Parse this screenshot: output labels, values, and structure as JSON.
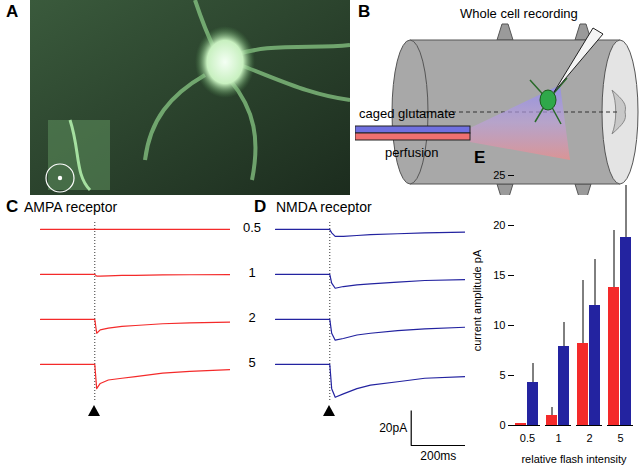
{
  "panel_labels": [
    "A",
    "B",
    "C",
    "D",
    "E"
  ],
  "diagram": {
    "recording_label": "Whole cell recording",
    "perfusion_label": [
      "caged glutamate",
      "perfusion"
    ]
  },
  "chart_data": [
    {
      "type": "line",
      "title": "AMPA receptor",
      "color": "#f42a2a",
      "x": [
        0,
        190,
        200,
        207,
        220,
        250,
        300,
        350,
        450,
        550,
        700
      ],
      "xlim": [
        0,
        700
      ],
      "ylim": [
        -22,
        4
      ],
      "tick_labels": false,
      "stimulus": 200,
      "series": [
        {
          "name": "0.5",
          "values": [
            0,
            0,
            0,
            0,
            0,
            0,
            0,
            0,
            0,
            0,
            0
          ]
        },
        {
          "name": "1",
          "values": [
            0,
            0,
            0,
            -1,
            -1,
            -0.8,
            -0.6,
            -0.5,
            -0.3,
            -0.2,
            -0.1
          ]
        },
        {
          "name": "2",
          "values": [
            0,
            0,
            0,
            -8,
            -6,
            -5,
            -4,
            -3.5,
            -2.5,
            -2,
            -1.5
          ]
        },
        {
          "name": "5",
          "values": [
            0,
            0,
            0,
            -14,
            -11,
            -9,
            -8,
            -7,
            -5,
            -4,
            -3
          ]
        }
      ]
    },
    {
      "type": "line",
      "title": "NMDA receptor",
      "color": "#2323a0",
      "x": [
        0,
        190,
        200,
        207,
        220,
        250,
        300,
        350,
        450,
        550,
        700
      ],
      "xlim": [
        0,
        700
      ],
      "ylim": [
        -22,
        4
      ],
      "tick_labels": false,
      "stimulus": 200,
      "series": [
        {
          "values": [
            0,
            0,
            0,
            -2,
            -4,
            -4,
            -3.5,
            -3,
            -2.5,
            -2,
            -1.5
          ]
        },
        {
          "values": [
            0,
            0,
            0,
            -5,
            -8,
            -7,
            -6,
            -5.5,
            -4.5,
            -3.5,
            -3
          ]
        },
        {
          "values": [
            0,
            0,
            0,
            -8,
            -12,
            -11,
            -9,
            -8,
            -6.5,
            -5.5,
            -4.5
          ]
        },
        {
          "values": [
            0,
            0,
            0,
            -14,
            -19,
            -17,
            -14,
            -12,
            -10,
            -8,
            -7
          ]
        }
      ],
      "scale_bar": {
        "current": {
          "value": 20,
          "label": "20pA"
        },
        "time": {
          "value": 200,
          "label": "200ms"
        }
      }
    },
    {
      "type": "bar",
      "categories": [
        "0.5",
        "1",
        "2",
        "5"
      ],
      "xlabel": "relative flash intensity",
      "ylabel": "current amplitude pA",
      "ylim": [
        0,
        25
      ],
      "yticks": [
        0,
        5,
        10,
        15,
        20,
        25
      ],
      "series": [
        {
          "color": "#f42a2a",
          "values": [
            0.2,
            1,
            8.2,
            13.8
          ],
          "errors": [
            0,
            0.8,
            6.3,
            5.7
          ]
        },
        {
          "color": "#2323a0",
          "values": [
            4.3,
            7.9,
            12,
            18.8
          ],
          "errors": [
            1.9,
            2.4,
            4.6,
            5.2
          ]
        }
      ]
    }
  ]
}
